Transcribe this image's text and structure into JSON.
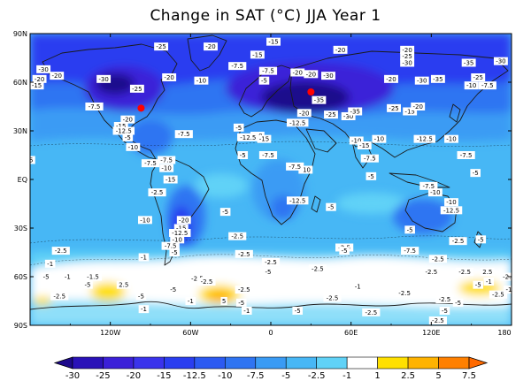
{
  "title": "Change in SAT (°C) JJA Year 1",
  "map": {
    "lat_ticks": [
      "90N",
      "60N",
      "30N",
      "EQ",
      "30S",
      "60S",
      "90S"
    ],
    "lon_ticks": [
      "120W",
      "60W",
      "0",
      "60E",
      "120E",
      "180"
    ],
    "colors": {
      "land": "#1a1a1a",
      "frame": "#000000",
      "levels": [
        "#1e0a8c",
        "#3b20d8",
        "#2a3ef0",
        "#2f74f2",
        "#3a9bf4",
        "#47b7f5",
        "#60d2f7",
        "#ffffff",
        "#ffe000",
        "#ffb300",
        "#ff8000"
      ]
    },
    "markers": [
      {
        "name": "red-dot-north-america",
        "lon": -97,
        "lat": 44,
        "color": "#ff0000"
      },
      {
        "name": "red-dot-eurasia",
        "lon": 30,
        "lat": 54,
        "color": "#ff0000"
      }
    ],
    "labels": [
      {
        "t": "-25",
        "lon": -82,
        "lat": 82
      },
      {
        "t": "-15",
        "lon": 2,
        "lat": 85
      },
      {
        "t": "-20",
        "lon": -45,
        "lat": 82
      },
      {
        "t": "-20",
        "lon": 52,
        "lat": 80
      },
      {
        "t": "-20",
        "lon": 102,
        "lat": 80
      },
      {
        "t": "-25",
        "lon": 102,
        "lat": 76
      },
      {
        "t": "-30",
        "lon": 102,
        "lat": 72
      },
      {
        "t": "-35",
        "lon": 148,
        "lat": 72
      },
      {
        "t": "-30",
        "lon": 172,
        "lat": 73
      },
      {
        "t": "-30",
        "lon": -170,
        "lat": 68
      },
      {
        "t": "-20",
        "lon": -160,
        "lat": 64
      },
      {
        "t": "-20",
        "lon": -173,
        "lat": 62
      },
      {
        "t": "-15",
        "lon": -175,
        "lat": 58
      },
      {
        "t": "-30",
        "lon": -125,
        "lat": 62
      },
      {
        "t": "-20",
        "lon": -76,
        "lat": 63
      },
      {
        "t": "-10",
        "lon": -52,
        "lat": 61
      },
      {
        "t": "-7.5",
        "lon": -25,
        "lat": 70
      },
      {
        "t": "-7.5",
        "lon": -2,
        "lat": 67
      },
      {
        "t": "-15",
        "lon": -10,
        "lat": 77
      },
      {
        "t": "-20",
        "lon": 30,
        "lat": 65
      },
      {
        "t": "-5",
        "lon": -5,
        "lat": 61
      },
      {
        "t": "-20",
        "lon": 20,
        "lat": 66
      },
      {
        "t": "-30",
        "lon": 43,
        "lat": 64
      },
      {
        "t": "-20",
        "lon": 90,
        "lat": 62
      },
      {
        "t": "-30",
        "lon": 113,
        "lat": 61
      },
      {
        "t": "-35",
        "lon": 125,
        "lat": 62
      },
      {
        "t": "-25",
        "lon": 155,
        "lat": 63
      },
      {
        "t": "-10",
        "lon": 150,
        "lat": 58
      },
      {
        "t": "-7.5",
        "lon": 162,
        "lat": 58
      },
      {
        "t": "-25",
        "lon": -100,
        "lat": 56
      },
      {
        "t": "-35",
        "lon": 36,
        "lat": 49
      },
      {
        "t": "-25",
        "lon": 45,
        "lat": 40
      },
      {
        "t": "-20",
        "lon": 25,
        "lat": 41
      },
      {
        "t": "-12.5",
        "lon": 20,
        "lat": 35
      },
      {
        "t": "-30",
        "lon": 58,
        "lat": 39
      },
      {
        "t": "-35",
        "lon": 63,
        "lat": 42
      },
      {
        "t": "-25",
        "lon": 92,
        "lat": 44
      },
      {
        "t": "-15",
        "lon": 104,
        "lat": 42
      },
      {
        "t": "-20",
        "lon": 110,
        "lat": 45
      },
      {
        "t": "-7.5",
        "lon": -132,
        "lat": 45
      },
      {
        "t": "-20",
        "lon": -107,
        "lat": 37
      },
      {
        "t": "-15",
        "lon": -112,
        "lat": 33
      },
      {
        "t": "-5",
        "lon": -107,
        "lat": 26
      },
      {
        "t": "-12.5",
        "lon": -110,
        "lat": 30
      },
      {
        "t": "-10",
        "lon": -103,
        "lat": 20
      },
      {
        "t": "-7.5",
        "lon": -65,
        "lat": 28
      },
      {
        "t": "-5",
        "lon": -24,
        "lat": 32
      },
      {
        "t": "-5",
        "lon": -180,
        "lat": 12
      },
      {
        "t": "-7.5",
        "lon": -90,
        "lat": 10
      },
      {
        "t": "-7.5",
        "lon": -78,
        "lat": 12
      },
      {
        "t": "-10",
        "lon": -78,
        "lat": 7
      },
      {
        "t": "-15",
        "lon": -75,
        "lat": 0
      },
      {
        "t": "-10",
        "lon": -94,
        "lat": -25
      },
      {
        "t": "-5",
        "lon": -34,
        "lat": -20
      },
      {
        "t": "-20",
        "lon": -65,
        "lat": -25
      },
      {
        "t": "-15",
        "lon": -67,
        "lat": -30
      },
      {
        "t": "-12.5",
        "lon": -68,
        "lat": -33
      },
      {
        "t": "-10",
        "lon": -70,
        "lat": -37
      },
      {
        "t": "-7.5",
        "lon": -75,
        "lat": -41
      },
      {
        "t": "-5",
        "lon": -72,
        "lat": -45
      },
      {
        "t": "-20",
        "lon": -10,
        "lat": 27
      },
      {
        "t": "-15",
        "lon": -5,
        "lat": 25
      },
      {
        "t": "-12.5",
        "lon": -17,
        "lat": 26
      },
      {
        "t": "-7.5",
        "lon": -2,
        "lat": 15
      },
      {
        "t": "-5",
        "lon": -21,
        "lat": 15
      },
      {
        "t": "-10",
        "lon": 26,
        "lat": 6
      },
      {
        "t": "-7.5",
        "lon": 18,
        "lat": 8
      },
      {
        "t": "-12.5",
        "lon": 20,
        "lat": -13
      },
      {
        "t": "-5",
        "lon": 45,
        "lat": -17
      },
      {
        "t": "-5",
        "lon": 75,
        "lat": 2
      },
      {
        "t": "-7.5",
        "lon": 74,
        "lat": 13
      },
      {
        "t": "-10",
        "lon": 64,
        "lat": 24
      },
      {
        "t": "-15",
        "lon": 70,
        "lat": 21
      },
      {
        "t": "-10",
        "lon": 81,
        "lat": 25
      },
      {
        "t": "-12.5",
        "lon": 115,
        "lat": 25
      },
      {
        "t": "-10",
        "lon": 135,
        "lat": 25
      },
      {
        "t": "-7.5",
        "lon": 146,
        "lat": 15
      },
      {
        "t": "-5",
        "lon": 153,
        "lat": 4
      },
      {
        "t": "-7.5",
        "lon": 118,
        "lat": -4
      },
      {
        "t": "-10",
        "lon": 123,
        "lat": -8
      },
      {
        "t": "-10",
        "lon": 135,
        "lat": -14
      },
      {
        "t": "-12.5",
        "lon": 135,
        "lat": -19
      },
      {
        "t": "-5",
        "lon": 104,
        "lat": -31
      },
      {
        "t": "-7.5",
        "lon": 104,
        "lat": -44
      },
      {
        "t": "-2.5",
        "lon": 140,
        "lat": -38
      },
      {
        "t": "-5",
        "lon": 157,
        "lat": -37
      },
      {
        "t": "-2.5",
        "lon": 125,
        "lat": -49
      },
      {
        "t": "-2.5",
        "lon": 55,
        "lat": -42
      },
      {
        "t": "-5",
        "lon": 55,
        "lat": -44
      },
      {
        "t": "-2.5",
        "lon": -157,
        "lat": -44
      },
      {
        "t": "-2.5",
        "lon": -85,
        "lat": -8
      },
      {
        "t": "-2.5",
        "lon": -25,
        "lat": -35
      },
      {
        "t": "-2.5",
        "lon": -20,
        "lat": -46
      },
      {
        "t": "-1",
        "lon": -95,
        "lat": -48
      },
      {
        "t": "-2.5",
        "lon": 0,
        "lat": -51
      },
      {
        "t": "-2.5",
        "lon": -55,
        "lat": -61
      },
      {
        "t": "-5",
        "lon": -2,
        "lat": -57
      },
      {
        "t": "-2.5",
        "lon": 35,
        "lat": -55
      },
      {
        "t": "-5",
        "lon": -73,
        "lat": -68
      },
      {
        "t": "-5",
        "lon": -97,
        "lat": -72
      },
      {
        "t": "-2.5",
        "lon": -158,
        "lat": -72
      },
      {
        "t": "-5",
        "lon": -168,
        "lat": -60
      },
      {
        "t": "-1",
        "lon": -152,
        "lat": -60
      },
      {
        "t": "-1.5",
        "lon": -133,
        "lat": -60
      },
      {
        "t": "-5",
        "lon": -137,
        "lat": -65
      },
      {
        "t": "-2.5",
        "lon": -48,
        "lat": -63
      },
      {
        "t": "-1",
        "lon": -60,
        "lat": -75
      },
      {
        "t": "-1",
        "lon": -95,
        "lat": -80
      },
      {
        "t": "2.5",
        "lon": -110,
        "lat": -65
      },
      {
        "t": "5",
        "lon": -35,
        "lat": -75
      },
      {
        "t": "-2.5",
        "lon": -20,
        "lat": -68
      },
      {
        "t": "-5",
        "lon": -22,
        "lat": -76
      },
      {
        "t": "-1",
        "lon": -18,
        "lat": -81
      },
      {
        "t": "-5",
        "lon": 20,
        "lat": -81
      },
      {
        "t": "-2.5",
        "lon": 46,
        "lat": -73
      },
      {
        "t": "-1",
        "lon": 65,
        "lat": -66
      },
      {
        "t": "-2.5",
        "lon": 100,
        "lat": -70
      },
      {
        "t": "-2.5",
        "lon": 130,
        "lat": -74
      },
      {
        "t": "-5",
        "lon": 140,
        "lat": -76
      },
      {
        "t": "-5",
        "lon": 130,
        "lat": -81
      },
      {
        "t": "-2.5",
        "lon": 125,
        "lat": -87
      },
      {
        "t": "-2.5",
        "lon": 75,
        "lat": -82
      },
      {
        "t": "-5",
        "lon": 155,
        "lat": -65
      },
      {
        "t": "-1",
        "lon": 163,
        "lat": -63
      },
      {
        "t": "-2.5",
        "lon": 170,
        "lat": -71
      },
      {
        "t": "-2.5",
        "lon": 178,
        "lat": -60
      },
      {
        "t": "2.5",
        "lon": 162,
        "lat": -57
      },
      {
        "t": "-1",
        "lon": 178,
        "lat": -68
      },
      {
        "t": "-2.5",
        "lon": 145,
        "lat": -57
      },
      {
        "t": "-2.5",
        "lon": 120,
        "lat": -57
      },
      {
        "t": "-1",
        "lon": -165,
        "lat": -52
      }
    ]
  },
  "colorbar": {
    "tick_labels": [
      "-30",
      "-25",
      "-20",
      "-15",
      "-12.5",
      "-10",
      "-7.5",
      "-5",
      "-2.5",
      "-1",
      "1",
      "2.5",
      "5",
      "7.5"
    ]
  }
}
